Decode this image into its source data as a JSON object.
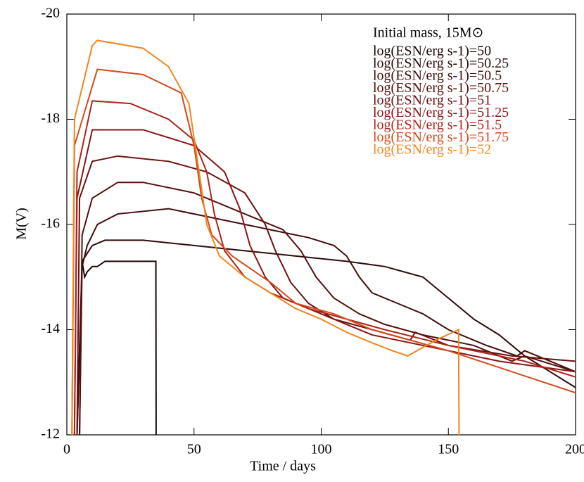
{
  "chart_data": {
    "type": "line",
    "title": "Initial mass, 15M⊙",
    "xlabel": "Time / days",
    "ylabel": "M(V)",
    "xlim": [
      0,
      200
    ],
    "xticks": [
      0,
      50,
      100,
      150,
      200
    ],
    "ylim": [
      -12,
      -20
    ],
    "yticks": [
      -20,
      -18,
      -16,
      -14,
      -12
    ],
    "series": [
      {
        "name": "log(ESN/erg s-1)=50",
        "color": "#1a0606",
        "x": [
          5,
          6,
          7,
          8,
          10,
          12,
          15,
          20,
          30,
          35,
          35.1
        ],
        "values": [
          -12,
          -15.3,
          -15.0,
          -15.1,
          -15.2,
          -15.2,
          -15.3,
          -15.3,
          -15.3,
          -15.3,
          -12
        ]
      },
      {
        "name": "log(ESN/erg s-1)=50.25",
        "color": "#2e0a0a",
        "x": [
          4,
          6,
          10,
          15,
          30,
          50,
          70,
          90,
          110,
          125,
          140,
          150,
          160,
          170,
          180,
          190,
          200
        ],
        "values": [
          -12,
          -15.3,
          -15.6,
          -15.7,
          -15.7,
          -15.6,
          -15.5,
          -15.4,
          -15.3,
          -15.2,
          -15.0,
          -14.6,
          -14.2,
          -13.9,
          -13.5,
          -13.2,
          -12.9
        ]
      },
      {
        "name": "log(ESN/erg s-1)=50.5",
        "color": "#430c0c",
        "x": [
          4,
          6,
          8,
          12,
          20,
          40,
          60,
          80,
          95,
          105,
          110,
          115,
          120,
          130,
          140,
          150,
          165,
          177,
          180,
          190,
          200
        ],
        "values": [
          -12,
          -15.2,
          -15.6,
          -16.0,
          -16.2,
          -16.3,
          -16.1,
          -15.9,
          -15.75,
          -15.6,
          -15.4,
          -15.0,
          -14.7,
          -14.5,
          -14.3,
          -14.0,
          -13.7,
          -13.5,
          -13.6,
          -13.4,
          -13.2
        ]
      },
      {
        "name": "log(ESN/erg s-1)=50.75",
        "color": "#560e0e",
        "x": [
          5,
          6,
          10,
          20,
          30,
          50,
          70,
          85,
          92,
          98,
          105,
          115,
          125,
          140,
          160,
          175,
          180,
          200
        ],
        "values": [
          -12,
          -15.8,
          -16.5,
          -16.8,
          -16.8,
          -16.6,
          -16.2,
          -15.9,
          -15.5,
          -15.0,
          -14.6,
          -14.3,
          -14.1,
          -13.9,
          -13.7,
          -13.4,
          -13.5,
          -13.2
        ]
      },
      {
        "name": "log(ESN/erg s-1)=51",
        "color": "#6c1010",
        "x": [
          4,
          5,
          10,
          20,
          40,
          55,
          70,
          78,
          82,
          88,
          95,
          105,
          120,
          135,
          137,
          150,
          175,
          200
        ],
        "values": [
          -12,
          -16.5,
          -17.2,
          -17.3,
          -17.2,
          -17.0,
          -16.6,
          -16.0,
          -15.5,
          -14.9,
          -14.5,
          -14.2,
          -14.0,
          -13.8,
          -13.95,
          -13.7,
          -13.5,
          -13.4
        ]
      },
      {
        "name": "log(ESN/erg s-1)=51.25",
        "color": "#881414",
        "x": [
          3,
          4,
          10,
          30,
          50,
          62,
          68,
          72,
          78,
          85,
          95,
          110,
          120,
          135,
          150,
          170,
          200
        ],
        "values": [
          -12,
          -16.5,
          -17.8,
          -17.8,
          -17.5,
          -17.0,
          -16.3,
          -15.6,
          -15.0,
          -14.6,
          -14.4,
          -14.1,
          -13.9,
          -13.75,
          -13.6,
          -13.4,
          -13.2
        ]
      },
      {
        "name": "log(ESN/erg s-1)=51.5",
        "color": "#ad2418",
        "x": [
          3,
          4,
          10,
          25,
          40,
          50,
          55,
          58,
          62,
          70,
          80,
          95,
          110,
          125,
          150,
          180,
          200
        ],
        "values": [
          -12,
          -17.0,
          -18.35,
          -18.3,
          -18.0,
          -17.6,
          -17.0,
          -16.2,
          -15.5,
          -15.0,
          -14.7,
          -14.4,
          -14.2,
          -14.0,
          -13.7,
          -13.4,
          -13.1
        ]
      },
      {
        "name": "log(ESN/erg s-1)=51.75",
        "color": "#d24a1a",
        "x": [
          2,
          3,
          12,
          30,
          45,
          50,
          53,
          57,
          65,
          80,
          90,
          105,
          120,
          150,
          200
        ],
        "values": [
          -12,
          -17.5,
          -18.95,
          -18.85,
          -18.5,
          -17.5,
          -16.5,
          -15.8,
          -15.4,
          -14.9,
          -14.5,
          -14.3,
          -14.0,
          -13.6,
          -12.8
        ]
      },
      {
        "name": "log(ESN/erg s-1)=52",
        "color": "#f0861f",
        "x": [
          2,
          3,
          10,
          12,
          30,
          40,
          48,
          52,
          55,
          60,
          70,
          80,
          90,
          100,
          110,
          120,
          128,
          134,
          145,
          154,
          154.2
        ],
        "values": [
          -12,
          -18.0,
          -19.4,
          -19.5,
          -19.35,
          -19.0,
          -18.3,
          -17.0,
          -16.0,
          -15.4,
          -15.0,
          -14.7,
          -14.4,
          -14.2,
          -13.95,
          -13.75,
          -13.6,
          -13.5,
          -13.8,
          -14.0,
          -12
        ]
      }
    ]
  }
}
